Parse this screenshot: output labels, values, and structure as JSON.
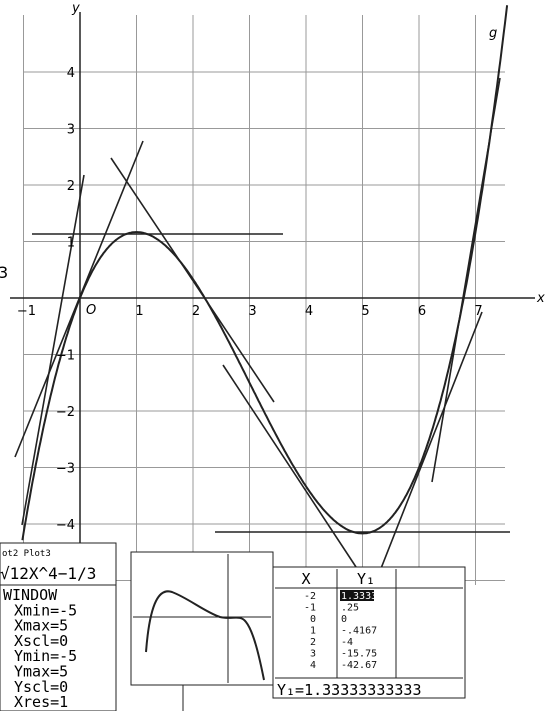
{
  "graph": {
    "x_axis_label": "x",
    "y_axis_label": "y",
    "curve_label": "g",
    "origin_label": "O",
    "edge_label": "3",
    "x_ticks": [
      "−1",
      "1",
      "2",
      "3",
      "4",
      "5",
      "6",
      "7"
    ],
    "y_ticks": [
      "4",
      "3",
      "2",
      "1",
      "−1",
      "−2",
      "−3",
      "−4"
    ]
  },
  "calculator": {
    "y_editor": [
      "ot2  Plot3",
      "√12X^4−1/3"
    ],
    "window": [
      "WINDOW",
      "Xmin=-5",
      "Xmax=5",
      "Xscl=0",
      "Ymin=-5",
      "Ymax=5",
      "Yscl=0",
      "Xres=1"
    ],
    "table": {
      "headers": [
        "X",
        "Y₁"
      ],
      "rows": [
        [
          "-2",
          "1.3333"
        ],
        [
          "-1",
          ".25"
        ],
        [
          "0",
          "0"
        ],
        [
          "1",
          "-.4167"
        ],
        [
          "2",
          "-4"
        ],
        [
          "3",
          "-15.75"
        ],
        [
          "4",
          "-42.67"
        ]
      ],
      "entry": "Y₁=1.33333333333"
    }
  }
}
